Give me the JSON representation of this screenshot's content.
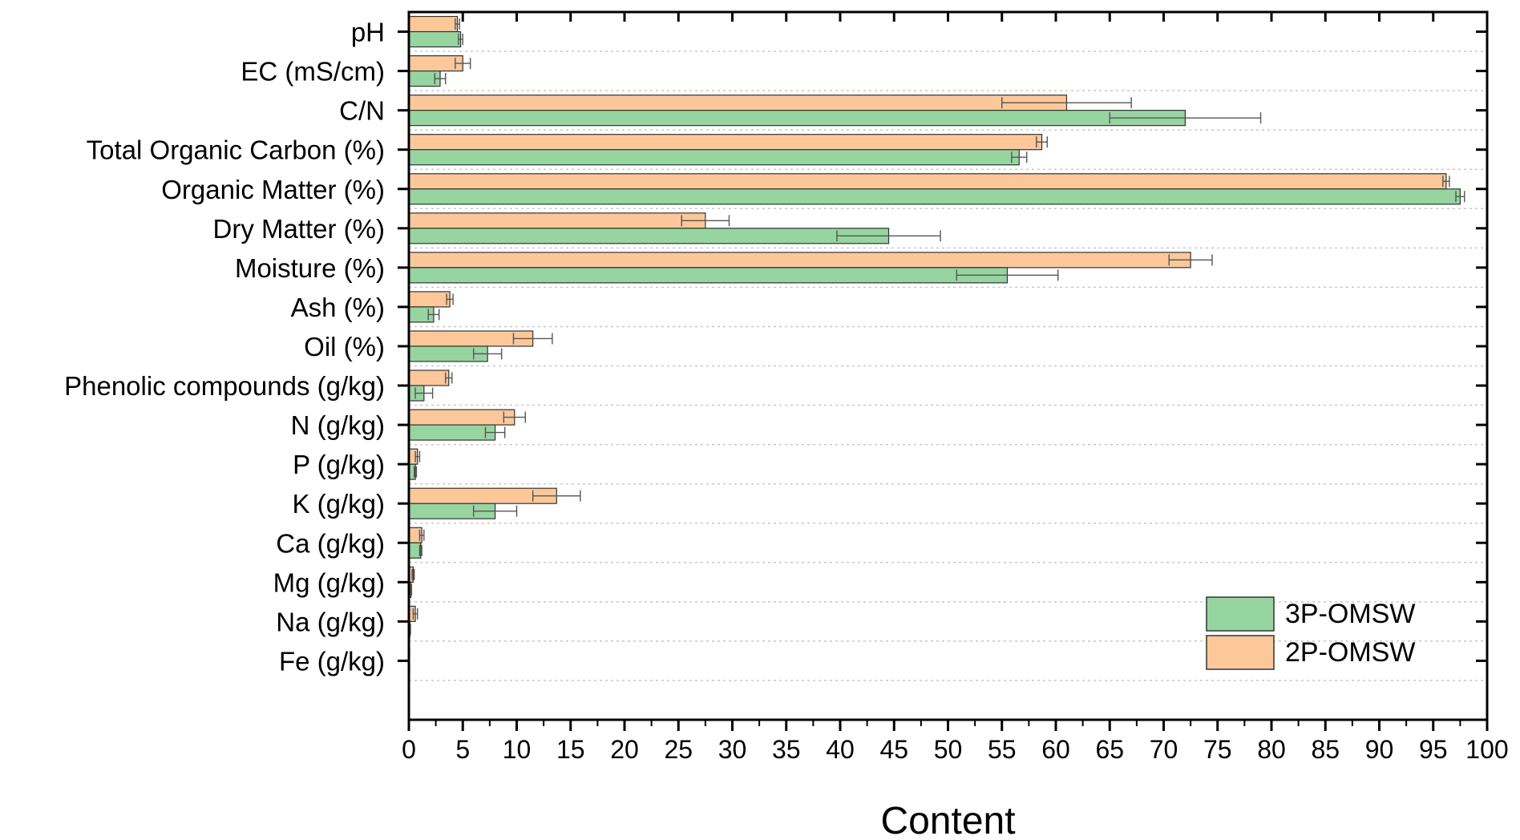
{
  "chart_data": {
    "type": "bar",
    "orientation": "horizontal",
    "xlabel": "Content",
    "ylabel": "",
    "xlim": [
      0,
      100
    ],
    "xticks": [
      0,
      5,
      10,
      15,
      20,
      25,
      30,
      35,
      40,
      45,
      50,
      55,
      60,
      65,
      70,
      75,
      80,
      85,
      90,
      95,
      100
    ],
    "grid": "horizontal dotted",
    "legend_position": "bottom-right",
    "categories": [
      "pH",
      "EC (mS/cm)",
      "C/N",
      "Total Organic Carbon  (%)",
      "Organic Matter (%)",
      "Dry Matter (%)",
      "Moisture (%)",
      "Ash (%)",
      "Oil (%)",
      "Phenolic compounds (g/kg)",
      "N (g/kg)",
      "P (g/kg)",
      "K (g/kg)",
      "Ca (g/kg)",
      "Mg (g/kg)",
      "Na (g/kg)",
      "Fe (g/kg)"
    ],
    "series": [
      {
        "name": "2P-OMSW",
        "color": "#FCC89A",
        "values": [
          4.5,
          5.0,
          61.0,
          58.7,
          96.2,
          27.5,
          72.5,
          3.8,
          11.5,
          3.7,
          9.8,
          0.8,
          13.7,
          1.2,
          0.4,
          0.6,
          0.05
        ],
        "errors": [
          0.2,
          0.7,
          6.0,
          0.5,
          0.3,
          2.2,
          2.0,
          0.3,
          1.8,
          0.3,
          1.0,
          0.2,
          2.2,
          0.2,
          0.1,
          0.2,
          0.02
        ]
      },
      {
        "name": "3P-OMSW",
        "color": "#96D5A0",
        "values": [
          4.8,
          2.9,
          72.0,
          56.6,
          97.5,
          44.5,
          55.5,
          2.3,
          7.3,
          1.4,
          8.0,
          0.6,
          8.0,
          1.1,
          0.2,
          0.1,
          0.05
        ],
        "errors": [
          0.2,
          0.5,
          7.0,
          0.7,
          0.4,
          4.8,
          4.7,
          0.5,
          1.3,
          0.8,
          0.9,
          0.1,
          2.0,
          0.1,
          0.05,
          0.05,
          0.02
        ]
      }
    ]
  }
}
